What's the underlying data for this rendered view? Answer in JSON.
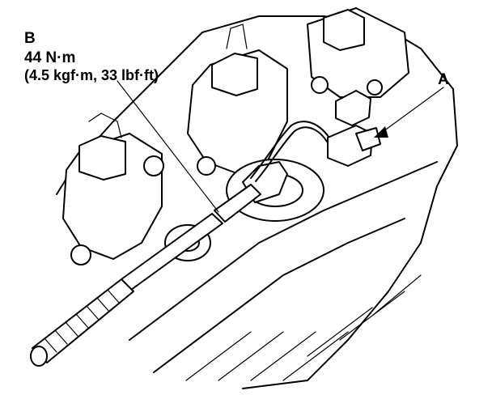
{
  "callouts": {
    "b": {
      "letter": "B",
      "torque_metric": "44 N·m",
      "torque_imperial": "(4.5 kgf·m, 33 lbf·ft)"
    },
    "a": {
      "letter": "A"
    }
  }
}
